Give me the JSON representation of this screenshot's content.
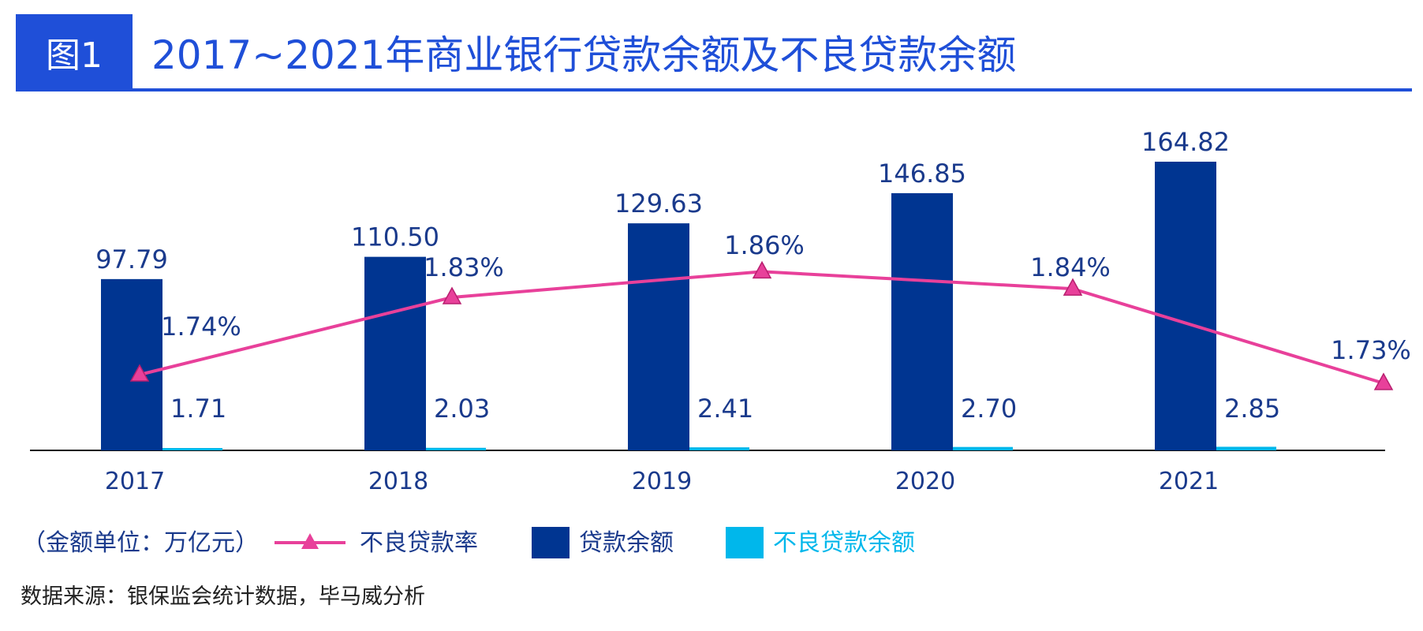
{
  "header": {
    "badge": "图1",
    "title": "2017~2021年商业银行贷款余额及不良贷款余额"
  },
  "source": "数据来源：银保监会统计数据，毕马威分析",
  "colors": {
    "accent": "#1f4fd8",
    "loan": "#003591",
    "npl": "#00b7eb",
    "rate": "#e8409a",
    "label": "#1a3a8c"
  },
  "chart_data": {
    "type": "bar",
    "categories": [
      "2017",
      "2018",
      "2019",
      "2020",
      "2021"
    ],
    "unit_note": "（金额单位：万亿元）",
    "series": [
      {
        "name": "贷款余额",
        "type": "bar",
        "values": [
          97.79,
          110.5,
          129.63,
          146.85,
          164.82
        ],
        "labels": [
          "97.79",
          "110.50",
          "129.63",
          "146.85",
          "164.82"
        ]
      },
      {
        "name": "不良贷款余额",
        "type": "bar",
        "values": [
          1.71,
          2.03,
          2.41,
          2.7,
          2.85
        ],
        "labels": [
          "1.71",
          "2.03",
          "2.41",
          "2.70",
          "2.85"
        ]
      },
      {
        "name": "不良贷款率",
        "type": "line",
        "marker": "triangle",
        "values": [
          1.74,
          1.83,
          1.86,
          1.84,
          1.73
        ],
        "labels": [
          "1.74%",
          "1.83%",
          "1.86%",
          "1.84%",
          "1.73%"
        ]
      }
    ],
    "legend_position": "bottom-left",
    "grid": false
  }
}
